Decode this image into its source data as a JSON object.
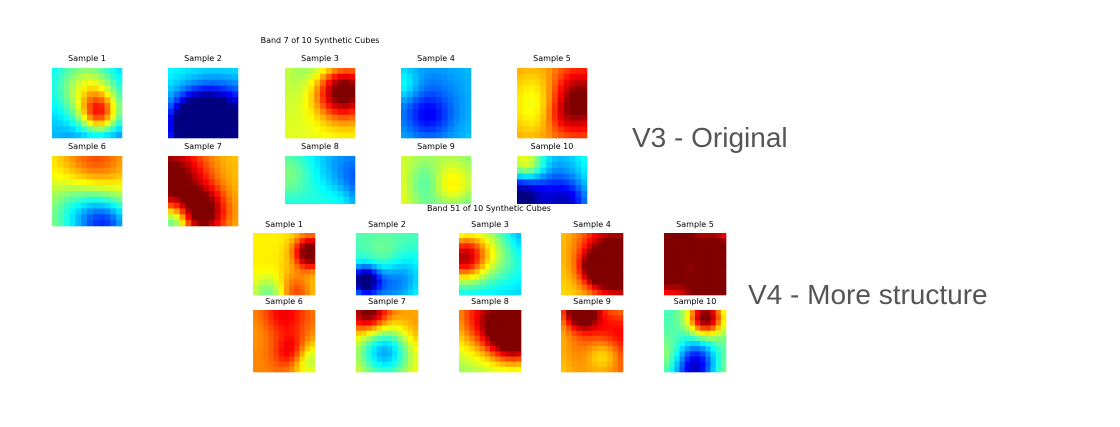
{
  "figures": [
    {
      "title": "Band 7 of 10 Synthetic Cubes",
      "samples": [
        "Sample 1",
        "Sample 2",
        "Sample 3",
        "Sample 4",
        "Sample 5",
        "Sample 6",
        "Sample 7",
        "Sample 8",
        "Sample 9",
        "Sample 10"
      ]
    },
    {
      "title": "Band 51 of 10 Synthetic Cubes",
      "samples": [
        "Sample 1",
        "Sample 2",
        "Sample 3",
        "Sample 4",
        "Sample 5",
        "Sample 6",
        "Sample 7",
        "Sample 8",
        "Sample 9",
        "Sample 10"
      ]
    }
  ],
  "labels": [
    "V3 - Original",
    "V4 - More structure"
  ]
}
